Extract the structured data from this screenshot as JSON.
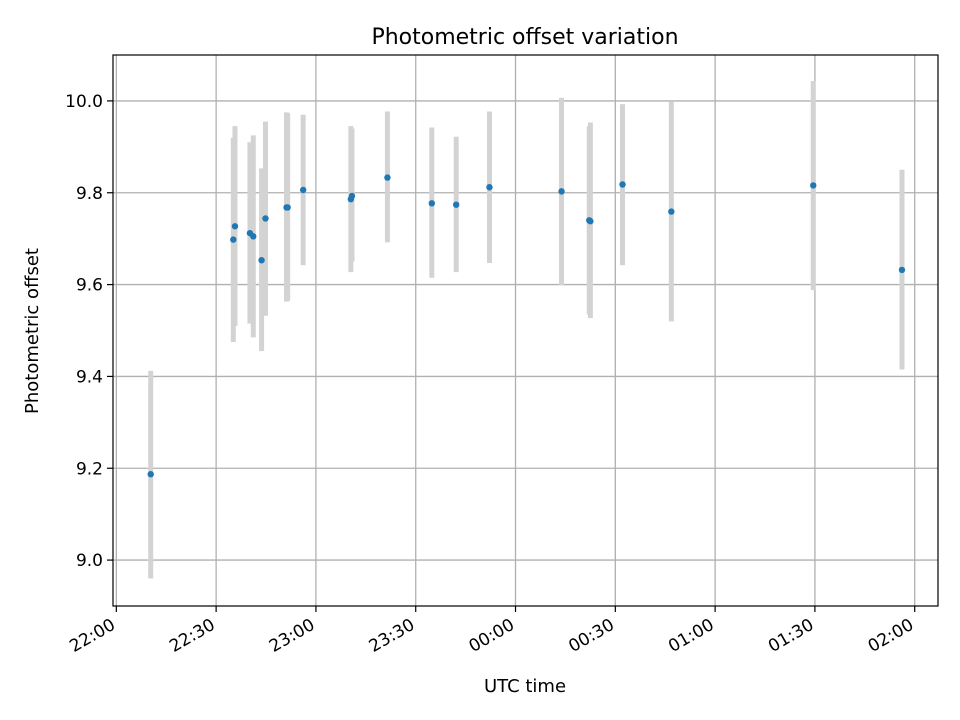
{
  "chart_data": {
    "type": "scatter",
    "title": "Photometric offset variation",
    "xlabel": "UTC time",
    "ylabel": "Photometric offset",
    "x_ticks": [
      "22:00",
      "22:30",
      "23:00",
      "23:30",
      "00:00",
      "00:30",
      "01:00",
      "01:30",
      "02:00"
    ],
    "y_ticks": [
      "9.0",
      "9.2",
      "9.4",
      "9.6",
      "9.8",
      "10.0"
    ],
    "x_range": [
      "21:59",
      "02:07"
    ],
    "ylim": [
      8.9,
      10.1
    ],
    "grid": true,
    "errorbar_color": "#d3d3d3",
    "point_color": "#1f77b4",
    "series": [
      {
        "points": [
          {
            "time": "22:10:20",
            "y": 9.187,
            "low": 8.96,
            "high": 9.412
          },
          {
            "time": "22:35:10",
            "y": 9.698,
            "low": 9.475,
            "high": 9.92
          },
          {
            "time": "22:35:40",
            "y": 9.727,
            "low": 9.51,
            "high": 9.945
          },
          {
            "time": "22:40:10",
            "y": 9.712,
            "low": 9.515,
            "high": 9.91
          },
          {
            "time": "22:41:10",
            "y": 9.705,
            "low": 9.485,
            "high": 9.925
          },
          {
            "time": "22:43:40",
            "y": 9.653,
            "low": 9.455,
            "high": 9.853
          },
          {
            "time": "22:44:50",
            "y": 9.744,
            "low": 9.532,
            "high": 9.955
          },
          {
            "time": "22:51:10",
            "y": 9.768,
            "low": 9.563,
            "high": 9.975
          },
          {
            "time": "22:51:30",
            "y": 9.768,
            "low": 9.565,
            "high": 9.973
          },
          {
            "time": "22:56:10",
            "y": 9.806,
            "low": 9.642,
            "high": 9.97
          },
          {
            "time": "23:10:30",
            "y": 9.786,
            "low": 9.627,
            "high": 9.945
          },
          {
            "time": "23:10:50",
            "y": 9.793,
            "low": 9.65,
            "high": 9.94
          },
          {
            "time": "23:21:30",
            "y": 9.833,
            "low": 9.692,
            "high": 9.977
          },
          {
            "time": "23:34:50",
            "y": 9.777,
            "low": 9.615,
            "high": 9.942
          },
          {
            "time": "23:42:10",
            "y": 9.774,
            "low": 9.627,
            "high": 9.922
          },
          {
            "time": "23:52:10",
            "y": 9.812,
            "low": 9.647,
            "high": 9.977
          },
          {
            "time": "00:13:50",
            "y": 9.803,
            "low": 9.598,
            "high": 10.007
          },
          {
            "time": "00:22:10",
            "y": 9.74,
            "low": 9.535,
            "high": 9.945
          },
          {
            "time": "00:22:30",
            "y": 9.738,
            "low": 9.527,
            "high": 9.953
          },
          {
            "time": "00:32:10",
            "y": 9.818,
            "low": 9.642,
            "high": 9.993
          },
          {
            "time": "00:46:50",
            "y": 9.759,
            "low": 9.52,
            "high": 9.998
          },
          {
            "time": "01:29:30",
            "y": 9.816,
            "low": 9.588,
            "high": 10.043
          },
          {
            "time": "01:56:10",
            "y": 9.632,
            "low": 9.415,
            "high": 9.85
          }
        ]
      }
    ]
  }
}
